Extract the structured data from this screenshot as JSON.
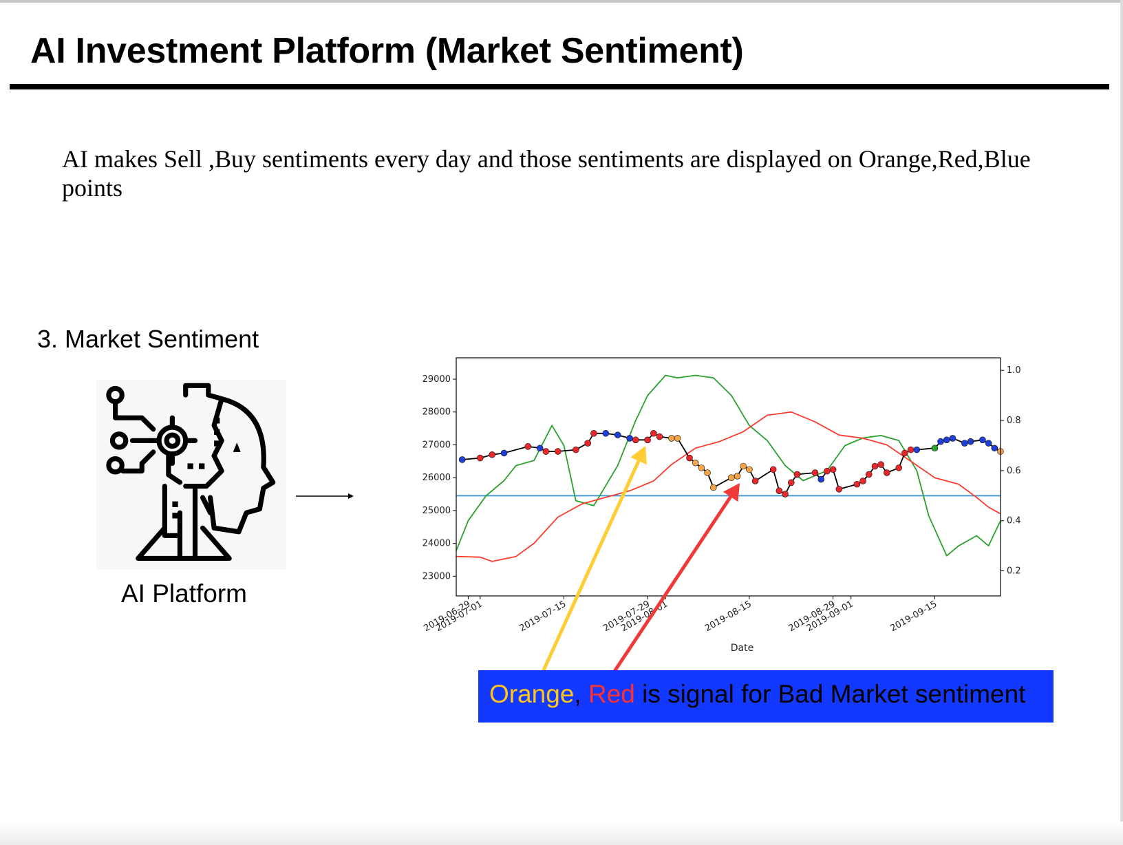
{
  "slide": {
    "title": "AI Investment Platform (Market Sentiment)",
    "description": "AI makes Sell ,Buy sentiments every day and those sentiments are displayed on Orange,Red,Blue points",
    "section_title": "3. Market Sentiment",
    "ai_label": "AI Platform"
  },
  "callout": {
    "orange_word": "Orange",
    "comma": ",",
    "red_word": "Red",
    "rest": " is signal for Bad Market sentiment",
    "background": "#1338ff"
  },
  "icons": {
    "ai_platform": "robot-head-with-gears-icon",
    "flow_arrow": "right-arrow-icon"
  },
  "chart_data": {
    "type": "line",
    "xlabel": "Date",
    "x_ticks": [
      "2019-06-29",
      "2019-07-01",
      "2019-07-15",
      "2019-07-29",
      "2019-08-01",
      "2019-08-15",
      "2019-08-29",
      "2019-09-01",
      "2019-09-15"
    ],
    "ylim_left": [
      22400,
      29650
    ],
    "y_ticks_left": [
      "23000",
      "24000",
      "25000",
      "26000",
      "27000",
      "28000",
      "29000"
    ],
    "ylim_right": [
      0.1,
      1.05
    ],
    "y_ticks_right": [
      "0.2",
      "0.4",
      "0.6",
      "0.8",
      "1.0"
    ],
    "x_range": [
      "2019-06-27",
      "2019-09-26"
    ],
    "price_series": {
      "color": "#000000",
      "x": [
        "2019-06-28",
        "2019-07-01",
        "2019-07-03",
        "2019-07-05",
        "2019-07-09",
        "2019-07-11",
        "2019-07-12",
        "2019-07-14",
        "2019-07-17",
        "2019-07-19",
        "2019-07-20",
        "2019-07-22",
        "2019-07-24",
        "2019-07-26",
        "2019-07-27",
        "2019-07-29",
        "2019-07-30",
        "2019-07-31",
        "2019-08-02",
        "2019-08-03",
        "2019-08-05",
        "2019-08-06",
        "2019-08-07",
        "2019-08-08",
        "2019-08-09",
        "2019-08-12",
        "2019-08-13",
        "2019-08-14",
        "2019-08-15",
        "2019-08-16",
        "2019-08-19",
        "2019-08-20",
        "2019-08-21",
        "2019-08-22",
        "2019-08-23",
        "2019-08-26",
        "2019-08-27",
        "2019-08-28",
        "2019-08-29",
        "2019-08-30",
        "2019-09-02",
        "2019-09-03",
        "2019-09-04",
        "2019-09-05",
        "2019-09-06",
        "2019-09-07",
        "2019-09-09",
        "2019-09-10",
        "2019-09-11",
        "2019-09-12",
        "2019-09-15",
        "2019-09-16",
        "2019-09-17",
        "2019-09-18",
        "2019-09-20",
        "2019-09-21",
        "2019-09-23",
        "2019-09-24",
        "2019-09-25",
        "2019-09-26"
      ],
      "values": [
        26550,
        26600,
        26700,
        26750,
        26950,
        26900,
        26800,
        26800,
        26850,
        27050,
        27350,
        27350,
        27300,
        27200,
        27150,
        27150,
        27350,
        27250,
        27200,
        27200,
        26600,
        26450,
        26300,
        26150,
        25700,
        26000,
        26050,
        26350,
        26250,
        25900,
        26250,
        25600,
        25500,
        25850,
        26100,
        26150,
        25950,
        26200,
        26250,
        25650,
        25800,
        25900,
        26100,
        26350,
        26400,
        26150,
        26300,
        26750,
        26850,
        26850,
        26900,
        27100,
        27150,
        27200,
        27050,
        27100,
        27150,
        27050,
        26900,
        26800
      ],
      "marker_colors": [
        "blue",
        "red",
        "red",
        "blue",
        "red",
        "blue",
        "red",
        "red",
        "red",
        "red",
        "red",
        "blue",
        "blue",
        "blue",
        "red",
        "red",
        "red",
        "red",
        "orange",
        "orange",
        "red",
        "orange",
        "orange",
        "orange",
        "orange",
        "orange",
        "orange",
        "orange",
        "orange",
        "red",
        "red",
        "red",
        "red",
        "red",
        "red",
        "red",
        "blue",
        "red",
        "red",
        "red",
        "red",
        "red",
        "red",
        "red",
        "red",
        "red",
        "red",
        "red",
        "red",
        "blue",
        "green",
        "blue",
        "blue",
        "blue",
        "blue",
        "blue",
        "blue",
        "blue",
        "blue",
        "orange"
      ]
    },
    "moving_average": {
      "color": "#ff3b30",
      "x": [
        "2019-06-27",
        "2019-07-01",
        "2019-07-03",
        "2019-07-07",
        "2019-07-10",
        "2019-07-14",
        "2019-07-18",
        "2019-07-22",
        "2019-07-26",
        "2019-07-30",
        "2019-08-02",
        "2019-08-06",
        "2019-08-10",
        "2019-08-14",
        "2019-08-18",
        "2019-08-22",
        "2019-08-26",
        "2019-08-30",
        "2019-09-03",
        "2019-09-07",
        "2019-09-11",
        "2019-09-15",
        "2019-09-19",
        "2019-09-22",
        "2019-09-24",
        "2019-09-26"
      ],
      "values": [
        23600,
        23580,
        23450,
        23600,
        24000,
        24800,
        25200,
        25400,
        25600,
        25900,
        26400,
        26900,
        27100,
        27400,
        27900,
        28000,
        27700,
        27300,
        27200,
        27000,
        26500,
        26000,
        25800,
        25400,
        25100,
        24900
      ]
    },
    "sentiment_ratio": {
      "color": "#2ca02c",
      "axis": "right",
      "x": [
        "2019-06-27",
        "2019-06-29",
        "2019-07-02",
        "2019-07-05",
        "2019-07-07",
        "2019-07-10",
        "2019-07-13",
        "2019-07-15",
        "2019-07-17",
        "2019-07-20",
        "2019-07-24",
        "2019-07-27",
        "2019-07-29",
        "2019-08-01",
        "2019-08-03",
        "2019-08-06",
        "2019-08-09",
        "2019-08-12",
        "2019-08-15",
        "2019-08-18",
        "2019-08-21",
        "2019-08-24",
        "2019-08-28",
        "2019-08-31",
        "2019-09-03",
        "2019-09-06",
        "2019-09-09",
        "2019-09-12",
        "2019-09-14",
        "2019-09-17",
        "2019-09-19",
        "2019-09-22",
        "2019-09-24",
        "2019-09-26"
      ],
      "values": [
        0.28,
        0.4,
        0.5,
        0.56,
        0.62,
        0.64,
        0.78,
        0.7,
        0.48,
        0.46,
        0.62,
        0.8,
        0.9,
        0.98,
        0.97,
        0.98,
        0.97,
        0.9,
        0.78,
        0.72,
        0.62,
        0.56,
        0.6,
        0.7,
        0.73,
        0.74,
        0.72,
        0.6,
        0.42,
        0.26,
        0.3,
        0.34,
        0.3,
        0.4
      ]
    },
    "threshold_line": {
      "color": "#4a9bd4",
      "value": 0.5,
      "axis": "right"
    },
    "marker_palette": {
      "blue": "#1f3fd6",
      "red": "#e8282b",
      "orange": "#f5a447",
      "green": "#2ca02c"
    }
  }
}
